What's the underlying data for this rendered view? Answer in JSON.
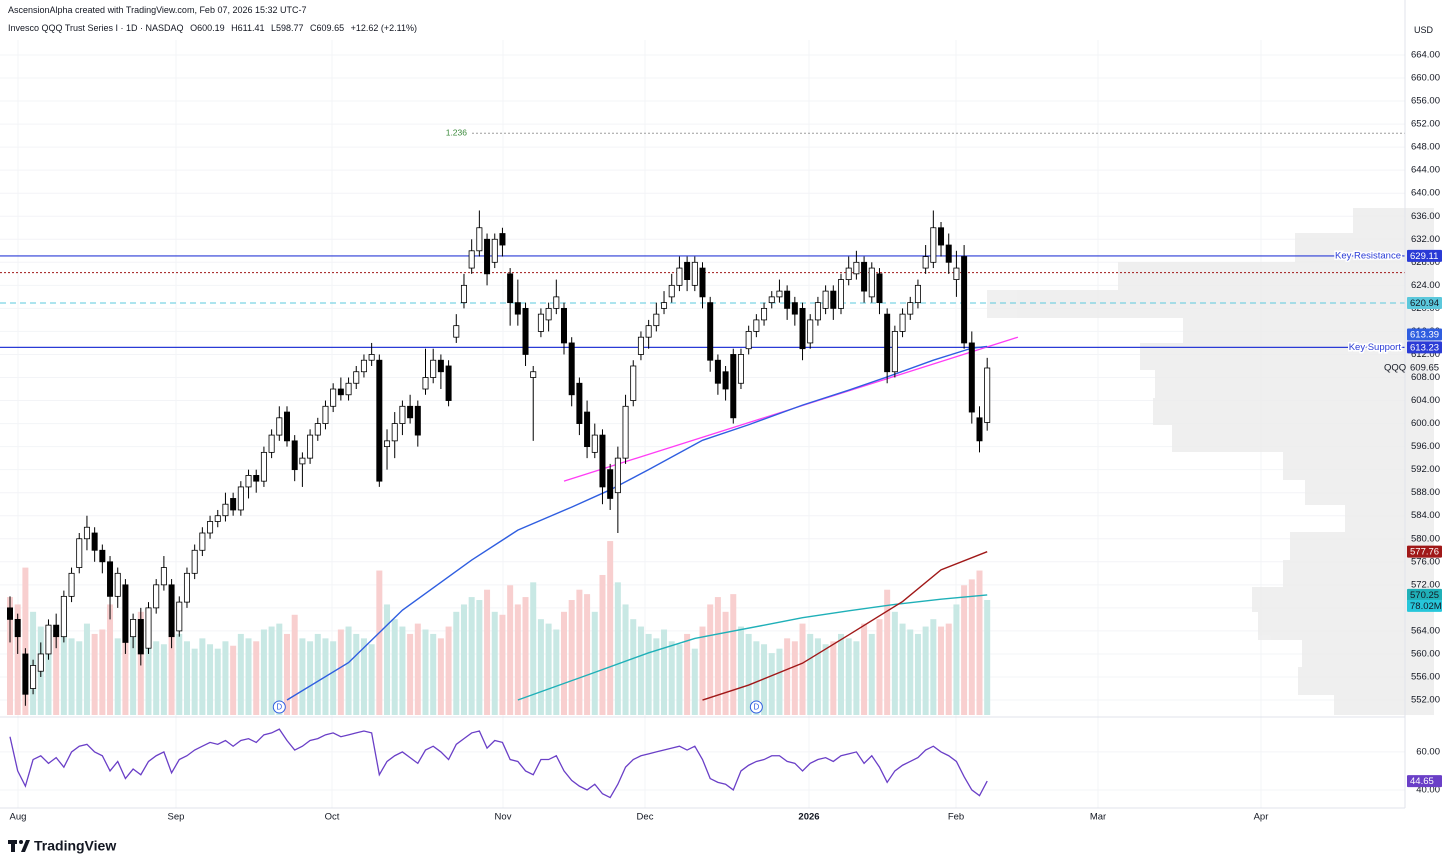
{
  "header": {
    "credit": "AscensionAlpha created with TradingView.com, Feb 07, 2026 15:32 UTC-7",
    "symbol": "Invesco QQQ Trust Series I · 1D · NASDAQ",
    "ohlc": [
      "O600.19",
      "H611.41",
      "L598.77",
      "C609.65",
      "+12.62 (+2.11%)"
    ],
    "currency": "USD"
  },
  "footer": {
    "brand": "TradingView"
  },
  "chart_data": {
    "type": "candlestick",
    "symbol_label": "QQQ",
    "last_price": 609.65,
    "up_color": "#ffffff",
    "down_color": "#000000",
    "volume_up_color": "#c8e8e4",
    "volume_down_color": "#f8cfcf",
    "xlim": [
      -1.3,
      181.3
    ],
    "ylim": [
      549.4,
      666.6
    ],
    "yticks": [
      {
        "value": 664,
        "label": "664.00"
      },
      {
        "value": 660,
        "label": "660.00"
      },
      {
        "value": 656,
        "label": "656.00"
      },
      {
        "value": 652,
        "label": "652.00"
      },
      {
        "value": 648,
        "label": "648.00"
      },
      {
        "value": 644,
        "label": "644.00"
      },
      {
        "value": 640,
        "label": "640.00"
      },
      {
        "value": 636,
        "label": "636.00"
      },
      {
        "value": 632,
        "label": "632.00"
      },
      {
        "value": 628,
        "label": "628.00"
      },
      {
        "value": 624,
        "label": "624.00"
      },
      {
        "value": 620,
        "label": "620.00"
      },
      {
        "value": 616,
        "label": "616.00"
      },
      {
        "value": 612,
        "label": "612.00"
      },
      {
        "value": 608,
        "label": "608.00"
      },
      {
        "value": 604,
        "label": "604.00"
      },
      {
        "value": 600,
        "label": "600.00"
      },
      {
        "value": 596,
        "label": "596.00"
      },
      {
        "value": 592,
        "label": "592.00"
      },
      {
        "value": 588,
        "label": "588.00"
      },
      {
        "value": 584,
        "label": "584.00"
      },
      {
        "value": 580,
        "label": "580.00"
      },
      {
        "value": 576,
        "label": "576.00"
      },
      {
        "value": 572,
        "label": "572.00"
      },
      {
        "value": 568,
        "label": "568.00"
      },
      {
        "value": 564,
        "label": "564.00"
      },
      {
        "value": 560,
        "label": "560.00"
      },
      {
        "value": 556,
        "label": "556.00"
      },
      {
        "value": 552,
        "label": "552.00"
      }
    ],
    "xticks": [
      "Aug",
      "Sep",
      "Oct",
      "Nov",
      "Dec",
      "2026",
      "Feb",
      "Mar",
      "Apr"
    ],
    "ohlc": [
      [
        568,
        570,
        562,
        566
      ],
      [
        566,
        567,
        560,
        563
      ],
      [
        560,
        561,
        551,
        553
      ],
      [
        554,
        559,
        553,
        558
      ],
      [
        557,
        562,
        556,
        560
      ],
      [
        560,
        566,
        559,
        565
      ],
      [
        565,
        567,
        561,
        563
      ],
      [
        563,
        571,
        562,
        570
      ],
      [
        570,
        575,
        569,
        574
      ],
      [
        575,
        581,
        574,
        580
      ],
      [
        580,
        584,
        578,
        582
      ],
      [
        581,
        582,
        576,
        578
      ],
      [
        578,
        579,
        574,
        576
      ],
      [
        576,
        577,
        566,
        570
      ],
      [
        570,
        575,
        568,
        574
      ],
      [
        572,
        573,
        560,
        562
      ],
      [
        563,
        567,
        561,
        566
      ],
      [
        566,
        568,
        558,
        560
      ],
      [
        561,
        569,
        560,
        568
      ],
      [
        568,
        573,
        567,
        572
      ],
      [
        572,
        577,
        571,
        575
      ],
      [
        572,
        573,
        561,
        563
      ],
      [
        564,
        570,
        563,
        569
      ],
      [
        569,
        575,
        568,
        574
      ],
      [
        574,
        579,
        573,
        578
      ],
      [
        578,
        582,
        577,
        581
      ],
      [
        581,
        584,
        580,
        583
      ],
      [
        583,
        585,
        582,
        584
      ],
      [
        584,
        588,
        583,
        586
      ],
      [
        587,
        588,
        584,
        585
      ],
      [
        585,
        590,
        584,
        589
      ],
      [
        589,
        592,
        587,
        591
      ],
      [
        591,
        592,
        588,
        590
      ],
      [
        590,
        596,
        589,
        595
      ],
      [
        595,
        599,
        594,
        598
      ],
      [
        598,
        603,
        597,
        601
      ],
      [
        602,
        603,
        596,
        597
      ],
      [
        597,
        598,
        590,
        592
      ],
      [
        593,
        595,
        589,
        594
      ],
      [
        594,
        599,
        593,
        598
      ],
      [
        598,
        601,
        597,
        600
      ],
      [
        600,
        604,
        599,
        603
      ],
      [
        603,
        607,
        602,
        606
      ],
      [
        606,
        608,
        604,
        605
      ],
      [
        605,
        608,
        604,
        607
      ],
      [
        607,
        610,
        606,
        609
      ],
      [
        609,
        612,
        608,
        611
      ],
      [
        611,
        614,
        610,
        612
      ],
      [
        611,
        612,
        589,
        590
      ],
      [
        596,
        599,
        592,
        597
      ],
      [
        597,
        602,
        594,
        600
      ],
      [
        600,
        604,
        598,
        603
      ],
      [
        603,
        605,
        600,
        601
      ],
      [
        603,
        604,
        596,
        598
      ],
      [
        606,
        613,
        605,
        608
      ],
      [
        608,
        613,
        607,
        611
      ],
      [
        611,
        612,
        606,
        609
      ],
      [
        610,
        611,
        603,
        604
      ],
      [
        615,
        619,
        614,
        617
      ],
      [
        621,
        626,
        620,
        624
      ],
      [
        627,
        632,
        626,
        630
      ],
      [
        630,
        637,
        629,
        634
      ],
      [
        632,
        633,
        624,
        626
      ],
      [
        628,
        633,
        627,
        632
      ],
      [
        633,
        634,
        629,
        631
      ],
      [
        626,
        627,
        617,
        621
      ],
      [
        621,
        625,
        617,
        619
      ],
      [
        620,
        621,
        610,
        612
      ],
      [
        608,
        610,
        597,
        609
      ],
      [
        616,
        620,
        615,
        619
      ],
      [
        618,
        621,
        616,
        620
      ],
      [
        620,
        625,
        619,
        622
      ],
      [
        620,
        621,
        612,
        614
      ],
      [
        614,
        615,
        603,
        605
      ],
      [
        607,
        608,
        598,
        600
      ],
      [
        602,
        604,
        594,
        596
      ],
      [
        595,
        600,
        594,
        598
      ],
      [
        598,
        599,
        586,
        589
      ],
      [
        592,
        593,
        585,
        587
      ],
      [
        588,
        596,
        581,
        594
      ],
      [
        594,
        605,
        593,
        603
      ],
      [
        604,
        611,
        603,
        610
      ],
      [
        612,
        616,
        611,
        615
      ],
      [
        615,
        618,
        613,
        617
      ],
      [
        617,
        621,
        616,
        619
      ],
      [
        620,
        623,
        619,
        621
      ],
      [
        622,
        626,
        621,
        624
      ],
      [
        624,
        629,
        623,
        627
      ],
      [
        628,
        629,
        623,
        625
      ],
      [
        624,
        629,
        623,
        628
      ],
      [
        627,
        628,
        620,
        622
      ],
      [
        621,
        622,
        609,
        611
      ],
      [
        611,
        612,
        605,
        607
      ],
      [
        609,
        610,
        604,
        606
      ],
      [
        612,
        613,
        600,
        601
      ],
      [
        607,
        613,
        606,
        612
      ],
      [
        613,
        617,
        612,
        616
      ],
      [
        616,
        619,
        615,
        618
      ],
      [
        618,
        621,
        617,
        620
      ],
      [
        621,
        623,
        620,
        622
      ],
      [
        622,
        625,
        621,
        623
      ],
      [
        623,
        624,
        618,
        620
      ],
      [
        621,
        622,
        617,
        619
      ],
      [
        620,
        621,
        611,
        613
      ],
      [
        614,
        619,
        613,
        618
      ],
      [
        618,
        622,
        617,
        621
      ],
      [
        620,
        624,
        619,
        623
      ],
      [
        623,
        624,
        618,
        620
      ],
      [
        620,
        626,
        619,
        625
      ],
      [
        625,
        629,
        624,
        627
      ],
      [
        626,
        630,
        625,
        628
      ],
      [
        628,
        629,
        621,
        623
      ],
      [
        622,
        628,
        621,
        627
      ],
      [
        626,
        627,
        619,
        621
      ],
      [
        619,
        620,
        607,
        609
      ],
      [
        609,
        617,
        608,
        616
      ],
      [
        616,
        620,
        615,
        619
      ],
      [
        619,
        622,
        618,
        621
      ],
      [
        621,
        625,
        620,
        624
      ],
      [
        627,
        631,
        626,
        629
      ],
      [
        628,
        637,
        627,
        634
      ],
      [
        634,
        635,
        629,
        631
      ],
      [
        631,
        633,
        626,
        628
      ],
      [
        625,
        630,
        622,
        627
      ],
      [
        629,
        631,
        613,
        614
      ],
      [
        614,
        616,
        600,
        602
      ],
      [
        601,
        603,
        595,
        597
      ],
      [
        600.19,
        611.41,
        598.77,
        609.65
      ]
    ],
    "volume": {
      "values": [
        80,
        75,
        100,
        70,
        60,
        58,
        55,
        60,
        52,
        50,
        62,
        55,
        58,
        75,
        52,
        88,
        60,
        70,
        55,
        50,
        48,
        72,
        55,
        50,
        45,
        52,
        48,
        45,
        50,
        47,
        55,
        52,
        50,
        58,
        60,
        62,
        55,
        68,
        52,
        50,
        55,
        52,
        50,
        58,
        60,
        55,
        52,
        48,
        98,
        75,
        65,
        60,
        55,
        62,
        58,
        55,
        52,
        60,
        70,
        75,
        80,
        78,
        85,
        70,
        68,
        88,
        75,
        80,
        90,
        65,
        62,
        58,
        70,
        78,
        85,
        82,
        70,
        95,
        118,
        90,
        75,
        65,
        60,
        55,
        52,
        58,
        50,
        48,
        55,
        45,
        60,
        75,
        80,
        70,
        82,
        60,
        55,
        50,
        48,
        42,
        45,
        52,
        50,
        62,
        55,
        52,
        48,
        50,
        55,
        52,
        50,
        62,
        55,
        65,
        85,
        70,
        62,
        58,
        55,
        60,
        65,
        60,
        62,
        75,
        88,
        92,
        98,
        78.02
      ],
      "last_label": {
        "value": 78.02,
        "label": "78.02M"
      },
      "label_color": "#26c6da"
    },
    "lines": [
      {
        "color": "#2f5ee0",
        "x": [
          36,
          44,
          51,
          60,
          66,
          73,
          78,
          83,
          90,
          96,
          103,
          109,
          114,
          120,
          125,
          127
        ],
        "values": [
          552,
          558.5,
          567.6,
          576.3,
          581.5,
          585.5,
          588.5,
          592,
          597.1,
          599.8,
          603.2,
          605.8,
          608.1,
          611,
          613.1,
          613.39
        ],
        "last_value": 613.39
      },
      {
        "color": "#1fb0b8",
        "x": [
          66,
          76,
          83,
          89,
          98,
          103,
          109,
          115,
          121,
          127
        ],
        "values": [
          552,
          556.8,
          560.2,
          562.7,
          565,
          566.3,
          567.5,
          568.6,
          569.5,
          570.25
        ],
        "last_value": 570.25
      },
      {
        "color": "#a01818",
        "x": [
          90,
          96,
          103,
          109,
          116,
          121,
          127
        ],
        "values": [
          552,
          554.6,
          558.4,
          563.3,
          569.1,
          574.6,
          577.76
        ],
        "last_value": 577.76
      }
    ],
    "trendline": {
      "color": "#ff3df5",
      "x": [
        72,
        131
      ],
      "values": [
        590,
        615
      ]
    },
    "levels": [
      {
        "label": "Key Resistance",
        "value": 629.11,
        "color": "#2a3bd6",
        "style": "solid",
        "axis_label": true
      },
      {
        "label": "Key Support",
        "value": 613.23,
        "color": "#2a3bd6",
        "style": "solid",
        "axis_label": true
      },
      {
        "value": 620.94,
        "color": "#5bc8dc",
        "style": "dashed",
        "axis_label": true
      },
      {
        "value": 626.2,
        "color": "#a01818",
        "style": "dotted",
        "axis_label": false
      },
      {
        "label": "1.236",
        "value": 650.4,
        "color": "#9e9e9e",
        "label_color": "#3b8a3b",
        "style": "dotted",
        "axis_label": false
      }
    ],
    "dividends": {
      "x": [
        35,
        97
      ],
      "labels": [
        "D",
        "D"
      ]
    },
    "rsi": {
      "color": "#6a3fc7",
      "ylim": [
        30.5,
        76.8
      ],
      "yticks": [
        {
          "value": 60,
          "label": "60.00"
        },
        {
          "value": 40,
          "label": "40.00"
        }
      ],
      "last_value": 44.65,
      "values": [
        68,
        50,
        42,
        56,
        58,
        54,
        57,
        52,
        60,
        63,
        64,
        60,
        58,
        50,
        55,
        46,
        51,
        48,
        55,
        58,
        60,
        49,
        56,
        58,
        61,
        63,
        65,
        64,
        66,
        63,
        66,
        67,
        65,
        69,
        70,
        72,
        66,
        61,
        63,
        66,
        67,
        69,
        70,
        68,
        69,
        70,
        71,
        70,
        48,
        55,
        58,
        60,
        57,
        54,
        61,
        63,
        60,
        56,
        64,
        67,
        70,
        71,
        62,
        66,
        65,
        56,
        55,
        50,
        48,
        56,
        56,
        58,
        50,
        45,
        42,
        40,
        43,
        38,
        36,
        43,
        52,
        56,
        58,
        59,
        60,
        61,
        62,
        63,
        61,
        63,
        56,
        46,
        44,
        43,
        40,
        50,
        53,
        55,
        56,
        58,
        58,
        55,
        54,
        50,
        54,
        56,
        57,
        55,
        58,
        59,
        60,
        54,
        58,
        52,
        44,
        50,
        53,
        55,
        57,
        61,
        63,
        60,
        58,
        55,
        47,
        40,
        37,
        44.65
      ]
    }
  }
}
